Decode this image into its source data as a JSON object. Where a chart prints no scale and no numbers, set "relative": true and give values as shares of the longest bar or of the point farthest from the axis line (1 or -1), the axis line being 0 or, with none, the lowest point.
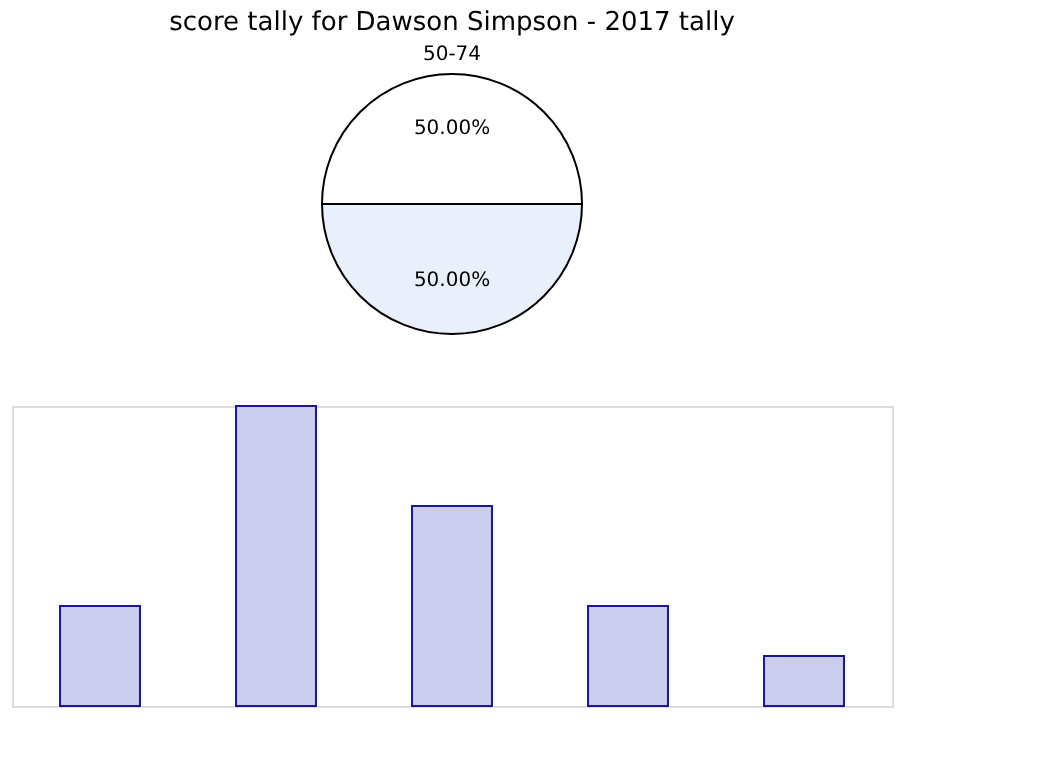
{
  "chart_data": [
    {
      "type": "pie",
      "title": "score tally for Dawson Simpson - 2017 tally",
      "categories": [
        "50-74",
        null
      ],
      "values": [
        50,
        50
      ],
      "colors": [
        "#ffffff",
        "#eaf0fb"
      ],
      "value_labels": [
        "50.00%",
        "50.00%"
      ]
    },
    {
      "type": "bar",
      "relative": true,
      "categories": [
        null,
        null,
        null,
        null,
        null
      ],
      "values": [
        0.333,
        1,
        0.667,
        0.333,
        0.167
      ],
      "color": "#ccccee"
    }
  ]
}
